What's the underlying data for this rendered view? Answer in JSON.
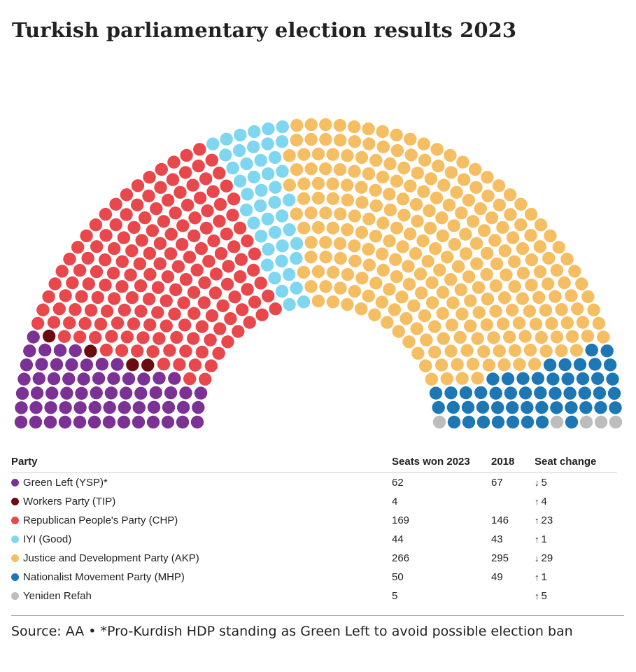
{
  "title": "Turkish parliamentary election results 2023",
  "chart_data": {
    "type": "hemicycle",
    "title": "Turkish parliamentary election results 2023",
    "parties": [
      {
        "name": "Green Left (YSP)*",
        "seats_2023": 62,
        "seats_2018": 67,
        "change_dir": "down",
        "change": 5,
        "color": "#7B3294"
      },
      {
        "name": "Workers Party (TIP)",
        "seats_2023": 4,
        "seats_2018": null,
        "change_dir": "up",
        "change": 4,
        "color": "#6B0C10"
      },
      {
        "name": "Republican People's Party (CHP)",
        "seats_2023": 169,
        "seats_2018": 146,
        "change_dir": "up",
        "change": 23,
        "color": "#E8474C"
      },
      {
        "name": "IYI (Good)",
        "seats_2023": 44,
        "seats_2018": 43,
        "change_dir": "up",
        "change": 1,
        "color": "#7FD6F0"
      },
      {
        "name": "Justice and Development Party (AKP)",
        "seats_2023": 266,
        "seats_2018": 295,
        "change_dir": "down",
        "change": 29,
        "color": "#F6BE62"
      },
      {
        "name": "Nationalist Movement Party (MHP)",
        "seats_2023": 50,
        "seats_2018": 49,
        "change_dir": "up",
        "change": 1,
        "color": "#1C77B4"
      },
      {
        "name": "Yeniden Refah",
        "seats_2023": 5,
        "seats_2018": null,
        "change_dir": "up",
        "change": 5,
        "color": "#BDBDBD"
      }
    ]
  },
  "table": {
    "headers": {
      "party": "Party",
      "seats": "Seats won 2023",
      "prev": "2018",
      "change": "Seat change"
    }
  },
  "source": "Source: AA • *Pro-Kurdish HDP standing as Green Left to avoid possible election ban"
}
